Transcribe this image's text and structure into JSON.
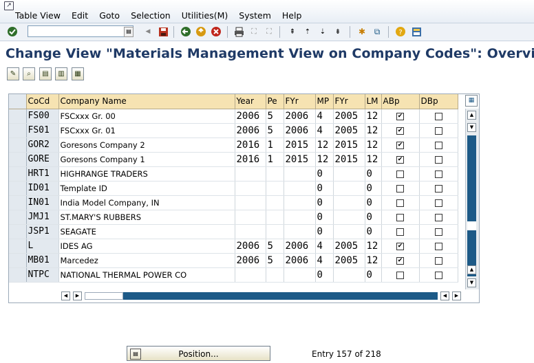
{
  "menu": [
    "Table View",
    "Edit",
    "Goto",
    "Selection",
    "Utilities(M)",
    "System",
    "Help"
  ],
  "command_field": {
    "value": ""
  },
  "title": "Change View \"Materials Management View on Company Codes\": Overview",
  "columns": [
    "CoCd",
    "Company Name",
    "Year",
    "Pe",
    "FYr",
    "MP",
    "FYr",
    "LM",
    "ABp",
    "DBp"
  ],
  "rows": [
    {
      "cocd": "FS00",
      "name": "FSCxxx Gr. 00",
      "year": "2006",
      "pe": "5",
      "fyr": "2006",
      "mp": "4",
      "fyr2": "2005",
      "lm": "12",
      "abp": true,
      "dbp": false
    },
    {
      "cocd": "FS01",
      "name": "FSCxxx Gr. 01",
      "year": "2006",
      "pe": "5",
      "fyr": "2006",
      "mp": "4",
      "fyr2": "2005",
      "lm": "12",
      "abp": true,
      "dbp": false
    },
    {
      "cocd": "GOR2",
      "name": "Goresons Company 2",
      "year": "2016",
      "pe": "1",
      "fyr": "2015",
      "mp": "12",
      "fyr2": "2015",
      "lm": "12",
      "abp": true,
      "dbp": false
    },
    {
      "cocd": "GORE",
      "name": "Goresons Company 1",
      "year": "2016",
      "pe": "1",
      "fyr": "2015",
      "mp": "12",
      "fyr2": "2015",
      "lm": "12",
      "abp": true,
      "dbp": false
    },
    {
      "cocd": "HRT1",
      "name": "HIGHRANGE TRADERS",
      "year": "",
      "pe": "",
      "fyr": "",
      "mp": "0",
      "fyr2": "",
      "lm": "0",
      "abp": false,
      "dbp": false
    },
    {
      "cocd": "ID01",
      "name": "Template ID",
      "year": "",
      "pe": "",
      "fyr": "",
      "mp": "0",
      "fyr2": "",
      "lm": "0",
      "abp": false,
      "dbp": false
    },
    {
      "cocd": "IN01",
      "name": "India Model Company, IN",
      "year": "",
      "pe": "",
      "fyr": "",
      "mp": "0",
      "fyr2": "",
      "lm": "0",
      "abp": false,
      "dbp": false
    },
    {
      "cocd": "JMJ1",
      "name": "ST.MARY'S RUBBERS",
      "year": "",
      "pe": "",
      "fyr": "",
      "mp": "0",
      "fyr2": "",
      "lm": "0",
      "abp": false,
      "dbp": false
    },
    {
      "cocd": "JSP1",
      "name": "SEAGATE",
      "year": "",
      "pe": "",
      "fyr": "",
      "mp": "0",
      "fyr2": "",
      "lm": "0",
      "abp": false,
      "dbp": false
    },
    {
      "cocd": "L",
      "name": "IDES AG",
      "year": "2006",
      "pe": "5",
      "fyr": "2006",
      "mp": "4",
      "fyr2": "2005",
      "lm": "12",
      "abp": true,
      "dbp": false
    },
    {
      "cocd": "MB01",
      "name": "Marcedez",
      "year": "2006",
      "pe": "5",
      "fyr": "2006",
      "mp": "4",
      "fyr2": "2005",
      "lm": "12",
      "abp": true,
      "dbp": false
    },
    {
      "cocd": "NTPC",
      "name": "NATIONAL THERMAL POWER CO",
      "year": "",
      "pe": "",
      "fyr": "",
      "mp": "0",
      "fyr2": "",
      "lm": "0",
      "abp": false,
      "dbp": false
    }
  ],
  "footer": {
    "position_label": "Position...",
    "entry_text": "Entry 157 of 218"
  },
  "colors": {
    "title": "#1f3a66",
    "header": "#f6e3b2",
    "scroll": "#1d5a87"
  }
}
